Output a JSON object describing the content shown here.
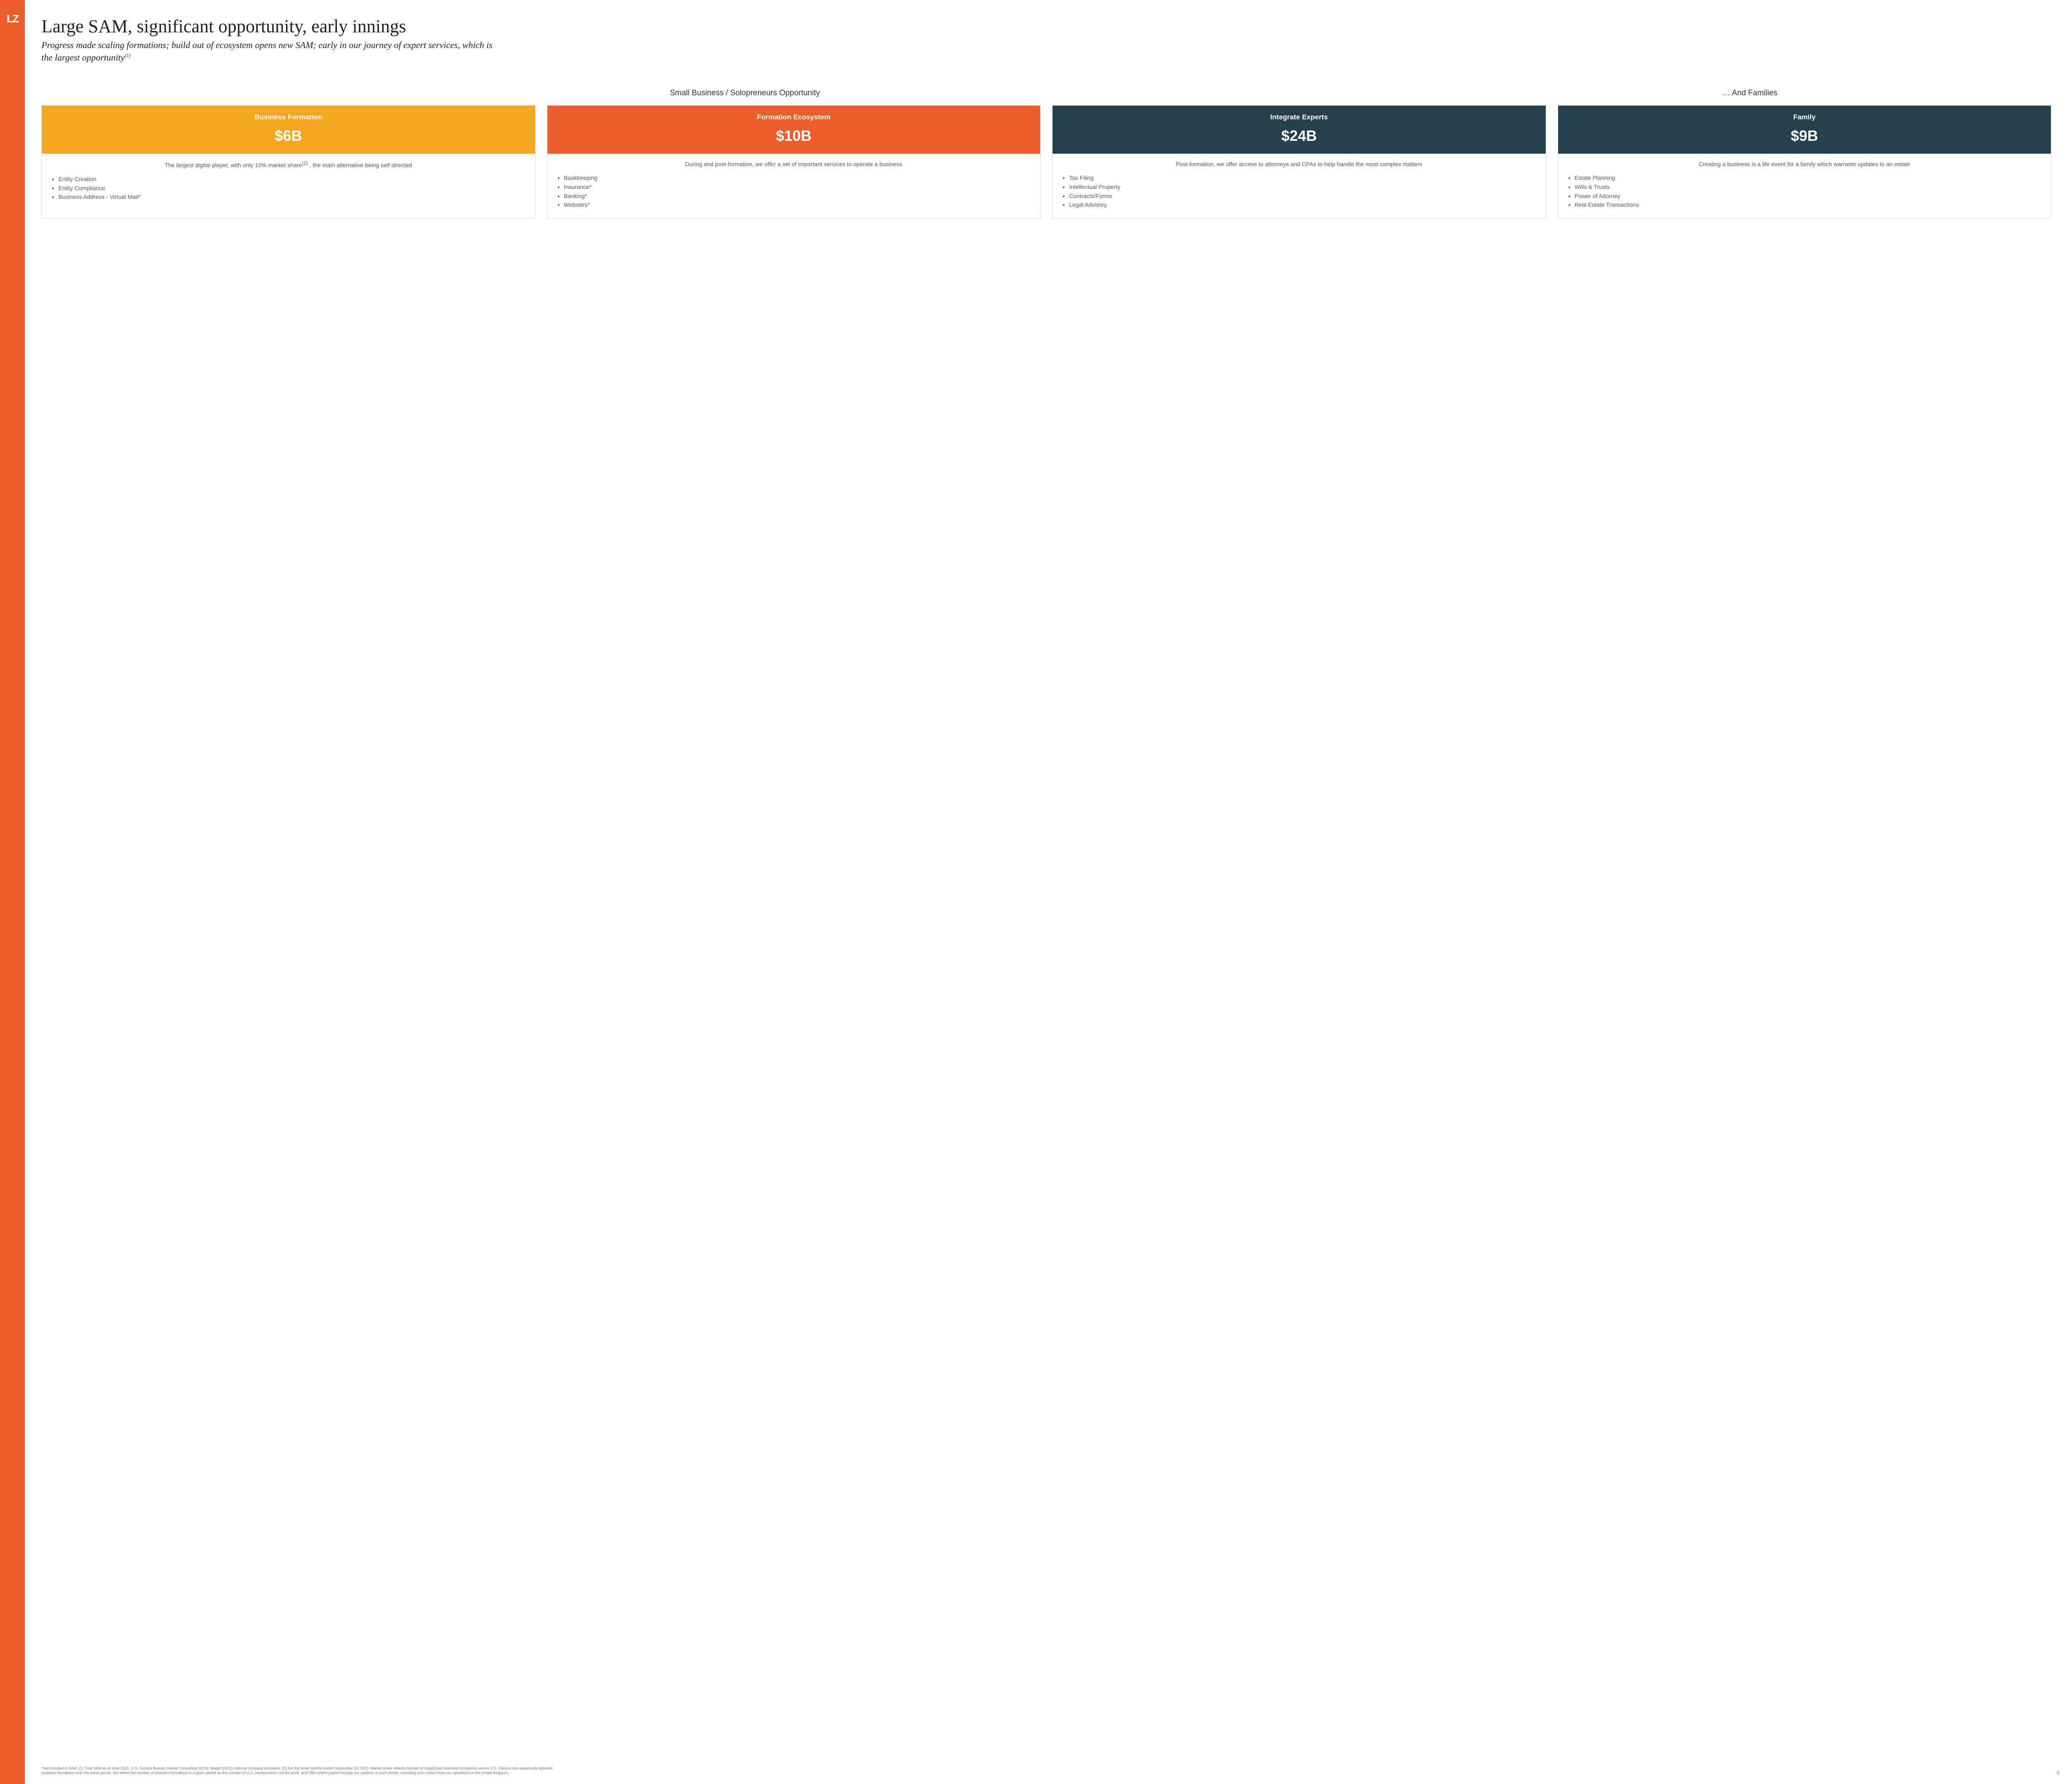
{
  "logo_text": "LZ",
  "colors": {
    "brand_orange": "#ed5c2b",
    "card_yellow": "#f3a71f",
    "card_orange": "#ed5c2b",
    "card_navy": "#25404c",
    "border": "#d9d9d9",
    "body_text": "#555b61"
  },
  "title": "Large SAM, significant opportunity, early innings",
  "subtitle_html": "Progress made scaling formations; build out of ecosystem opens new SAM; early in our journey of expert services, which is the largest opportunity<sup>(1)</sup>",
  "section_headers": {
    "left": "Small Business / Solopreneurs Opportunity",
    "right": "… And Families"
  },
  "cards": [
    {
      "color_key": "card_yellow",
      "title": "Business Formation",
      "value": "$6B",
      "desc_html": "The largest digital player, with only 10% market share<sup>(2)</sup> , the main alternative being self directed",
      "bullets": [
        "Entity Creation",
        "Entity Compliance",
        "Business Address - Virtual Mail*"
      ]
    },
    {
      "color_key": "card_orange",
      "title": "Formation Ecosystem",
      "value": "$10B",
      "desc_html": "During and post-formation, we offer a set of important services to operate a business",
      "bullets": [
        "Bookkeeping",
        "Insurance*",
        "Banking*",
        "Websites*"
      ]
    },
    {
      "color_key": "card_navy",
      "title": "Integrate Experts",
      "value": "$24B",
      "desc_html": "Post-formation, we offer access to attorneys and CPAs to help handle the most complex matters",
      "bullets": [
        "Tax Filing",
        "Intellectual Property",
        "Contracts/Forms",
        "Legal Advisory"
      ]
    },
    {
      "color_key": "card_navy",
      "title": "Family",
      "value": "$9B",
      "desc_html": "Creating a business is a life event for a family which warrants updates to an estate",
      "bullets": [
        "Estate Planning",
        "Wills & Trusts",
        "Power of Attorney",
        "Real Estate Transactions"
      ]
    }
  ],
  "footnote": "*Not included in SAM. (1) Total SAM as of June 2021. U.S. Census Bureau; Kantar Consulting (2019); Magid (2021); internal company estimates. (2) For the three months ended September 30, 2023. Market share reflects number of LegalZoom business formations versus U.S. Census non-seasonally adjusted business formations over the same period. We define the number of business formations in a given period as the number of LLC, incorporation, not-for-profit, and DBA orders placed through our platform in such period, excluding such orders from our operations in the United Kingdom.",
  "page_number": "8"
}
